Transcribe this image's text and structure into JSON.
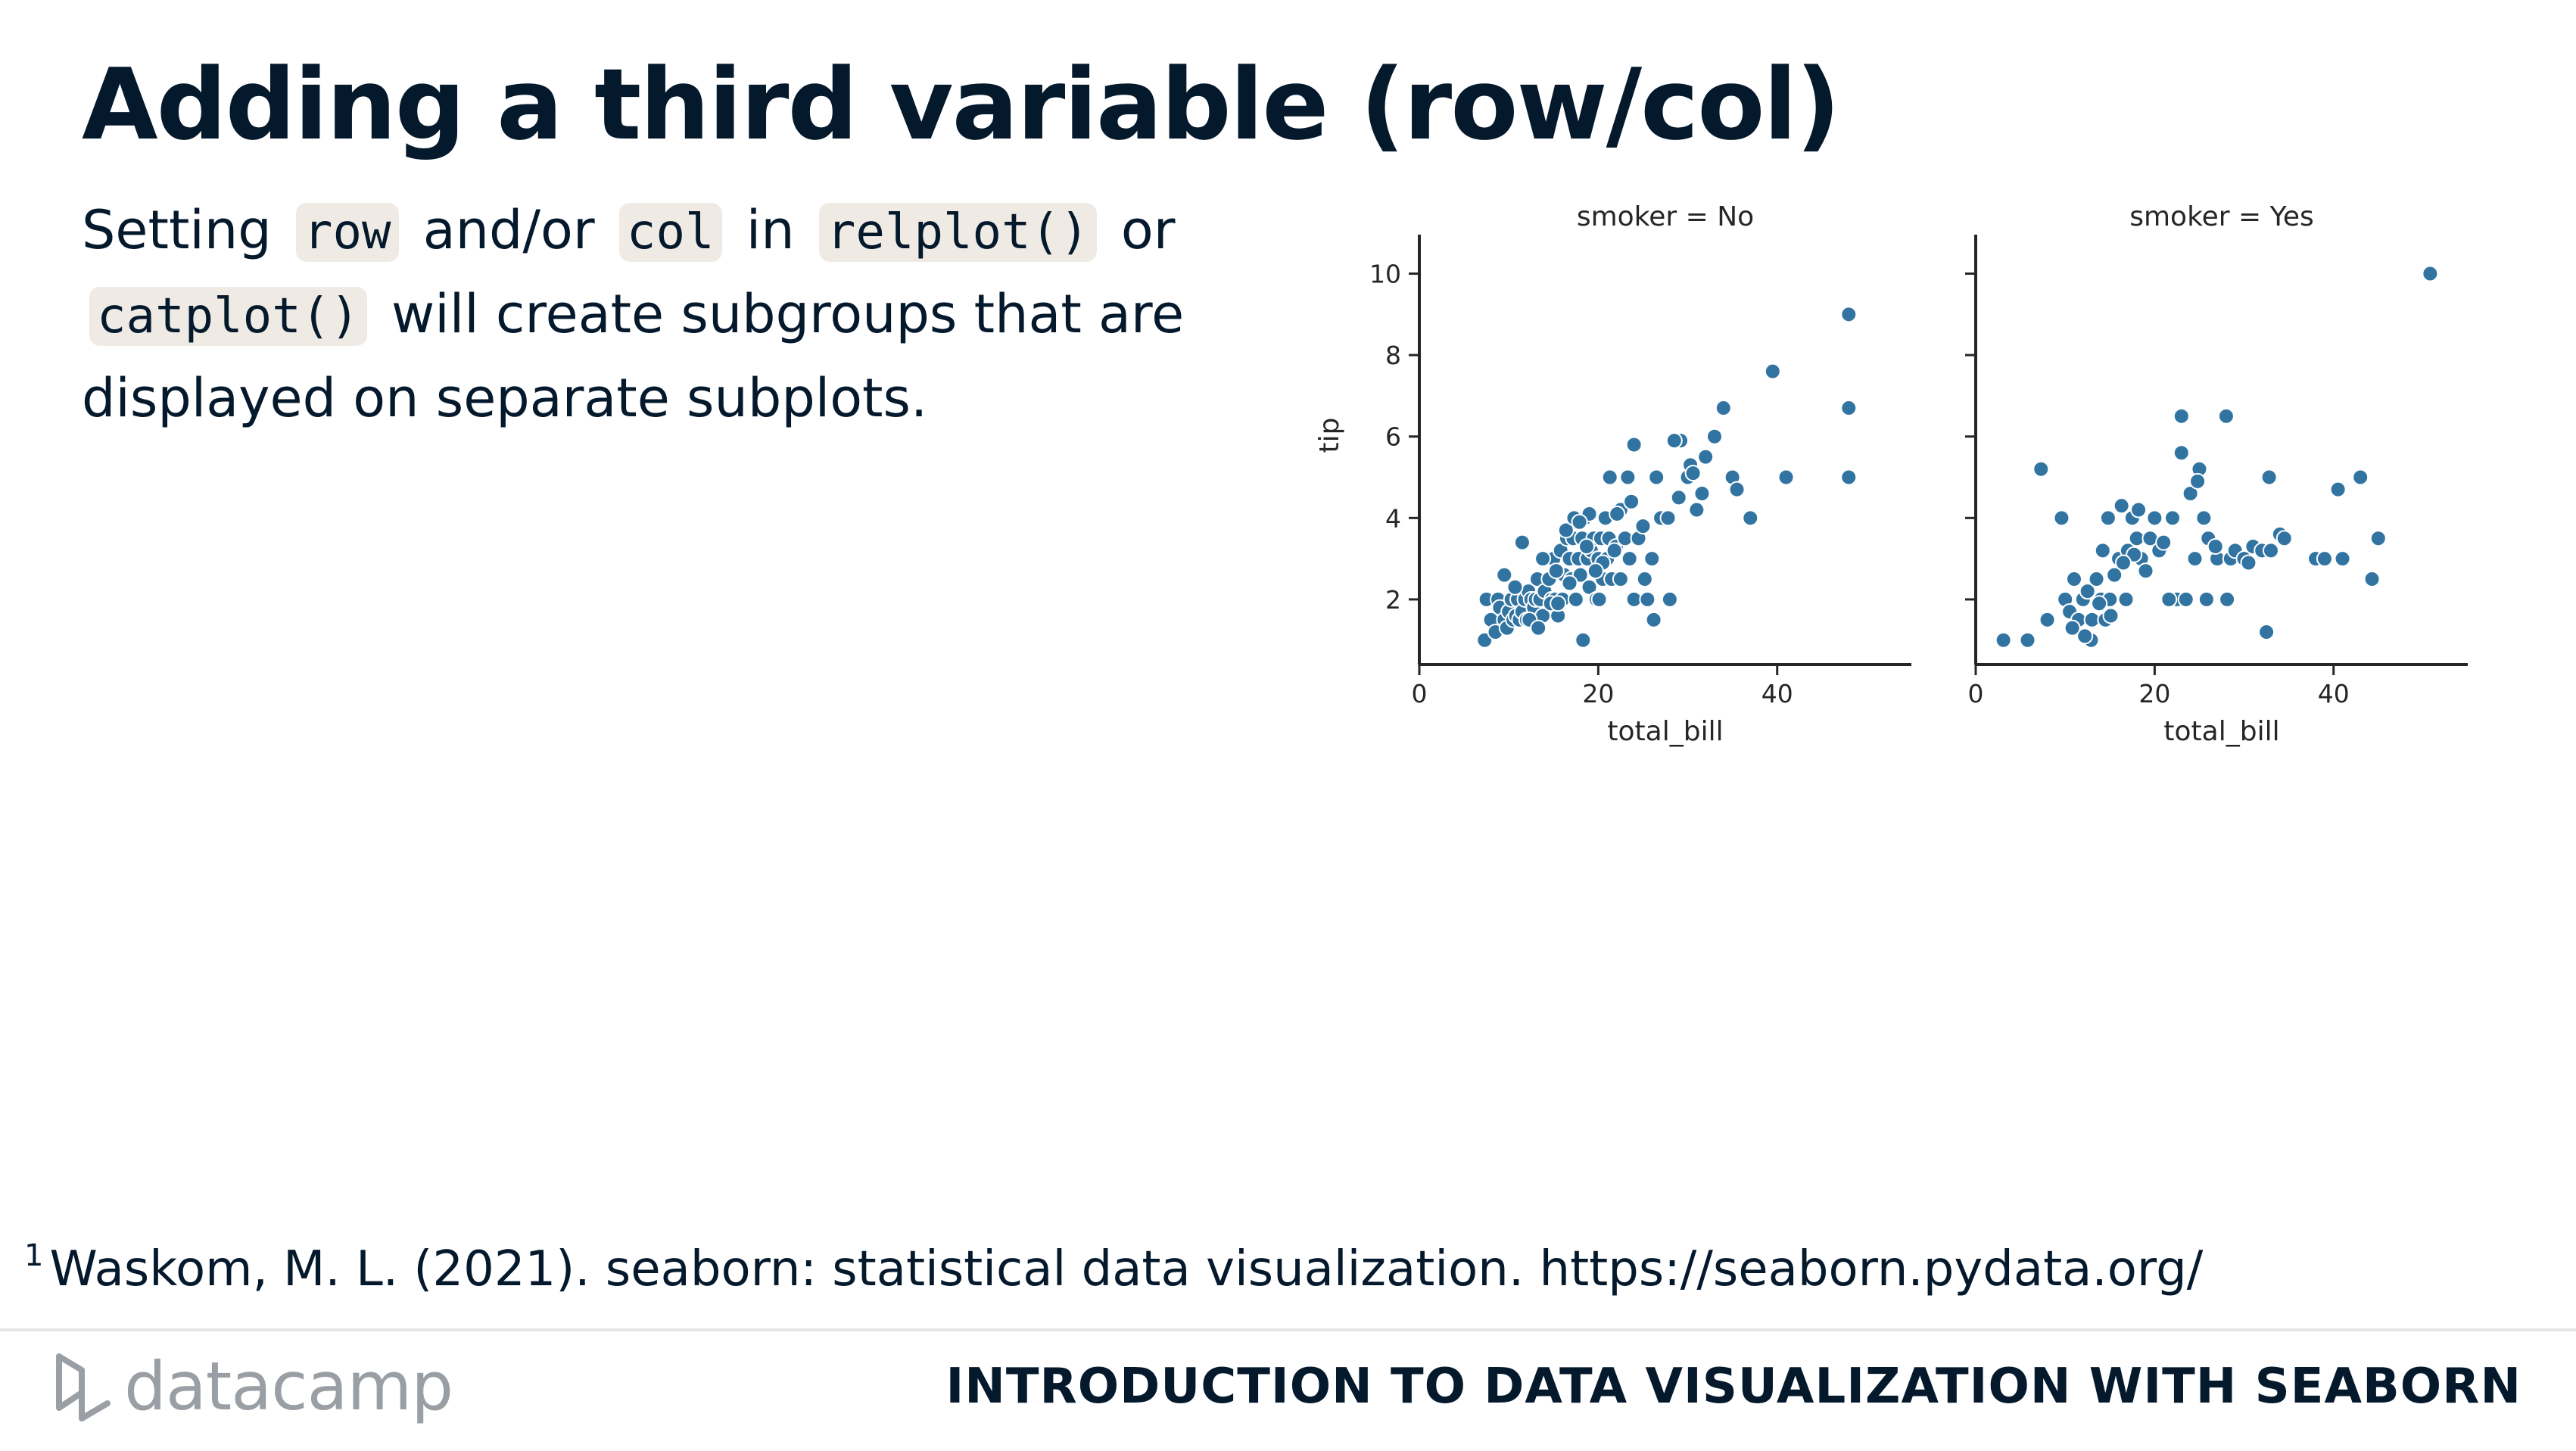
{
  "slide": {
    "title": "Adding a third variable (row/col)",
    "body": {
      "text1": "Setting",
      "code1": "row",
      "text2": "and/or",
      "code2": "col",
      "text3": "in",
      "code3": "relplot()",
      "text4": "or",
      "code4": "catplot()",
      "text5": "will create subgroups that are displayed on separate subplots."
    },
    "footnote_number": "1",
    "footnote": "Waskom, M. L. (2021). seaborn: statistical data visualization. https://seaborn.pydata.org/",
    "brand": "datacamp",
    "brand_icon": "datacamp-logo-icon",
    "course_title": "INTRODUCTION TO DATA VISUALIZATION WITH SEABORN"
  },
  "colors": {
    "marker": "#3274a1",
    "text": "#05192d",
    "code_bg": "#efebe4"
  },
  "chart_data": {
    "type": "scatter",
    "ylabel": "tip",
    "xlim": [
      0,
      55
    ],
    "ylim": [
      0.4,
      10.4
    ],
    "xticks": [
      0,
      20,
      40
    ],
    "yticks": [
      2,
      4,
      6,
      8,
      10
    ],
    "panels": [
      {
        "title": "smoker = No",
        "xlabel": "total_bill",
        "points": [
          [
            7.3,
            1.0
          ],
          [
            7.5,
            2.0
          ],
          [
            8.0,
            1.5
          ],
          [
            8.5,
            1.2
          ],
          [
            8.8,
            2.0
          ],
          [
            9.0,
            1.8
          ],
          [
            9.5,
            1.5
          ],
          [
            9.8,
            1.3
          ],
          [
            10.0,
            1.7
          ],
          [
            10.3,
            2.0
          ],
          [
            10.5,
            1.5
          ],
          [
            10.8,
            1.6
          ],
          [
            11.0,
            2.0
          ],
          [
            11.2,
            1.5
          ],
          [
            11.5,
            1.7
          ],
          [
            11.8,
            2.0
          ],
          [
            12.0,
            1.5
          ],
          [
            12.2,
            2.2
          ],
          [
            12.5,
            2.0
          ],
          [
            12.8,
            1.8
          ],
          [
            13.0,
            2.0
          ],
          [
            13.2,
            2.5
          ],
          [
            13.5,
            2.0
          ],
          [
            13.8,
            1.6
          ],
          [
            14.0,
            2.2
          ],
          [
            14.2,
            3.0
          ],
          [
            14.5,
            2.5
          ],
          [
            14.8,
            2.0
          ],
          [
            15.0,
            3.0
          ],
          [
            15.2,
            2.0
          ],
          [
            15.5,
            1.6
          ],
          [
            15.8,
            3.2
          ],
          [
            16.0,
            2.0
          ],
          [
            16.2,
            2.6
          ],
          [
            16.5,
            3.5
          ],
          [
            16.8,
            3.0
          ],
          [
            17.0,
            2.5
          ],
          [
            17.2,
            3.5
          ],
          [
            17.5,
            2.0
          ],
          [
            17.8,
            3.0
          ],
          [
            18.0,
            2.6
          ],
          [
            18.2,
            3.5
          ],
          [
            18.5,
            4.0
          ],
          [
            18.8,
            3.0
          ],
          [
            19.0,
            2.3
          ],
          [
            19.2,
            3.2
          ],
          [
            19.5,
            3.5
          ],
          [
            19.8,
            2.0
          ],
          [
            20.0,
            3.0
          ],
          [
            20.3,
            3.5
          ],
          [
            20.5,
            2.5
          ],
          [
            20.8,
            4.0
          ],
          [
            21.0,
            3.0
          ],
          [
            21.2,
            3.5
          ],
          [
            21.5,
            2.5
          ],
          [
            22.0,
            3.3
          ],
          [
            22.5,
            4.2
          ],
          [
            23.0,
            3.5
          ],
          [
            23.5,
            3.0
          ],
          [
            24.0,
            2.0
          ],
          [
            24.5,
            3.5
          ],
          [
            25.0,
            3.8
          ],
          [
            25.5,
            2.0
          ],
          [
            26.0,
            3.0
          ],
          [
            27.0,
            4.0
          ],
          [
            28.0,
            2.0
          ],
          [
            29.0,
            4.5
          ],
          [
            30.0,
            5.0
          ],
          [
            31.0,
            4.2
          ],
          [
            32.0,
            5.5
          ],
          [
            33.0,
            6.0
          ],
          [
            34.0,
            6.7
          ],
          [
            35.0,
            5.0
          ],
          [
            35.5,
            4.7
          ],
          [
            37.0,
            4.0
          ],
          [
            39.5,
            7.6
          ],
          [
            41.0,
            5.0
          ],
          [
            48.0,
            9.0
          ],
          [
            48.0,
            6.7
          ],
          [
            48.0,
            5.0
          ],
          [
            9.5,
            2.6
          ],
          [
            11.5,
            3.4
          ],
          [
            13.8,
            3.0
          ],
          [
            16.4,
            3.7
          ],
          [
            17.3,
            4.0
          ],
          [
            19.0,
            4.1
          ],
          [
            20.5,
            2.9
          ],
          [
            21.3,
            5.0
          ],
          [
            22.1,
            4.1
          ],
          [
            23.3,
            5.0
          ],
          [
            24.0,
            5.8
          ],
          [
            26.5,
            5.0
          ],
          [
            27.8,
            4.0
          ],
          [
            29.2,
            5.9
          ],
          [
            30.3,
            5.3
          ],
          [
            31.6,
            4.6
          ],
          [
            18.3,
            1.0
          ],
          [
            12.3,
            1.5
          ],
          [
            14.7,
            1.9
          ],
          [
            26.2,
            1.5
          ],
          [
            22.5,
            2.5
          ],
          [
            25.2,
            2.5
          ],
          [
            16.8,
            2.4
          ],
          [
            19.7,
            2.7
          ],
          [
            21.8,
            3.2
          ],
          [
            23.7,
            4.4
          ],
          [
            28.5,
            5.9
          ],
          [
            30.6,
            5.1
          ],
          [
            15.5,
            1.9
          ],
          [
            10.7,
            2.3
          ],
          [
            13.3,
            1.3
          ],
          [
            18.7,
            3.3
          ],
          [
            20.1,
            2.0
          ],
          [
            17.9,
            3.9
          ],
          [
            15.3,
            2.7
          ]
        ]
      },
      {
        "title": "smoker = Yes",
        "xlabel": "total_bill",
        "points": [
          [
            3.1,
            1.0
          ],
          [
            5.8,
            1.0
          ],
          [
            7.3,
            5.2
          ],
          [
            8.0,
            1.5
          ],
          [
            9.6,
            4.0
          ],
          [
            10.0,
            2.0
          ],
          [
            10.5,
            1.7
          ],
          [
            11.0,
            2.5
          ],
          [
            11.5,
            1.5
          ],
          [
            12.0,
            2.0
          ],
          [
            12.5,
            2.2
          ],
          [
            12.9,
            1.0
          ],
          [
            13.0,
            1.5
          ],
          [
            13.5,
            2.5
          ],
          [
            14.0,
            2.0
          ],
          [
            14.2,
            3.2
          ],
          [
            14.5,
            1.5
          ],
          [
            14.8,
            4.0
          ],
          [
            15.0,
            2.0
          ],
          [
            15.5,
            2.6
          ],
          [
            16.0,
            3.0
          ],
          [
            16.3,
            4.3
          ],
          [
            16.8,
            2.0
          ],
          [
            17.0,
            3.2
          ],
          [
            17.5,
            4.0
          ],
          [
            18.0,
            3.5
          ],
          [
            18.2,
            4.2
          ],
          [
            18.5,
            3.0
          ],
          [
            19.0,
            2.7
          ],
          [
            19.5,
            3.5
          ],
          [
            20.0,
            4.0
          ],
          [
            20.5,
            3.2
          ],
          [
            21.0,
            3.4
          ],
          [
            22.0,
            4.0
          ],
          [
            22.5,
            2.0
          ],
          [
            23.0,
            6.5
          ],
          [
            23.0,
            5.6
          ],
          [
            23.5,
            2.0
          ],
          [
            24.0,
            4.6
          ],
          [
            24.5,
            3.0
          ],
          [
            25.0,
            5.2
          ],
          [
            25.5,
            4.0
          ],
          [
            26.0,
            3.5
          ],
          [
            27.0,
            3.0
          ],
          [
            28.0,
            6.5
          ],
          [
            28.5,
            3.0
          ],
          [
            29.0,
            3.2
          ],
          [
            30.0,
            3.0
          ],
          [
            31.0,
            3.3
          ],
          [
            32.0,
            3.2
          ],
          [
            32.5,
            1.2
          ],
          [
            33.0,
            3.2
          ],
          [
            34.0,
            3.6
          ],
          [
            34.5,
            3.5
          ],
          [
            38.0,
            3.0
          ],
          [
            39.0,
            3.0
          ],
          [
            40.5,
            4.7
          ],
          [
            41.0,
            3.0
          ],
          [
            43.0,
            5.0
          ],
          [
            44.3,
            2.5
          ],
          [
            45.0,
            3.5
          ],
          [
            50.8,
            10.0
          ],
          [
            12.2,
            1.1
          ],
          [
            15.1,
            1.6
          ],
          [
            13.8,
            1.9
          ],
          [
            17.7,
            3.1
          ],
          [
            26.8,
            3.3
          ],
          [
            30.5,
            2.9
          ],
          [
            28.1,
            2.0
          ],
          [
            16.5,
            2.9
          ],
          [
            24.8,
            4.9
          ],
          [
            32.8,
            5.0
          ],
          [
            21.6,
            2.0
          ],
          [
            25.8,
            2.0
          ],
          [
            10.8,
            1.3
          ]
        ]
      }
    ]
  }
}
